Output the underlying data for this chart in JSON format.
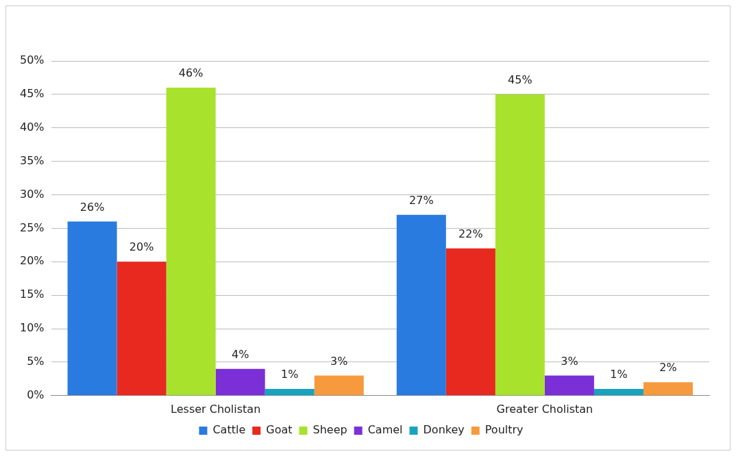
{
  "chart_data": {
    "type": "bar",
    "categories": [
      "Lesser Cholistan",
      "Greater Cholistan"
    ],
    "series": [
      {
        "name": "Cattle",
        "color": "#2a7be0",
        "values": [
          26,
          27
        ],
        "value_labels": [
          "26%",
          "27%"
        ]
      },
      {
        "name": "Goat",
        "color": "#e8291f",
        "values": [
          20,
          22
        ],
        "value_labels": [
          "20%",
          "22%"
        ]
      },
      {
        "name": "Sheep",
        "color": "#a9e22d",
        "values": [
          46,
          45
        ],
        "value_labels": [
          "46%",
          "45%"
        ]
      },
      {
        "name": "Camel",
        "color": "#7b2fd6",
        "values": [
          4,
          3
        ],
        "value_labels": [
          "4%",
          "3%"
        ]
      },
      {
        "name": "Donkey",
        "color": "#1aa3bf",
        "values": [
          1,
          1
        ],
        "value_labels": [
          "1%",
          "1%"
        ]
      },
      {
        "name": "Poultry",
        "color": "#f79a3e",
        "values": [
          3,
          2
        ],
        "value_labels": [
          "3%",
          "2%"
        ]
      }
    ],
    "ylim": [
      0,
      50
    ],
    "yticks": [
      {
        "value": 0,
        "label": "0%"
      },
      {
        "value": 5,
        "label": "5%"
      },
      {
        "value": 10,
        "label": "10%"
      },
      {
        "value": 15,
        "label": "15%"
      },
      {
        "value": 20,
        "label": "20%"
      },
      {
        "value": 25,
        "label": "25%"
      },
      {
        "value": 30,
        "label": "30%"
      },
      {
        "value": 35,
        "label": "35%"
      },
      {
        "value": 40,
        "label": "40%"
      },
      {
        "value": 45,
        "label": "45%"
      },
      {
        "value": 50,
        "label": "50%"
      }
    ],
    "grid": "y",
    "legend": "bottom"
  }
}
